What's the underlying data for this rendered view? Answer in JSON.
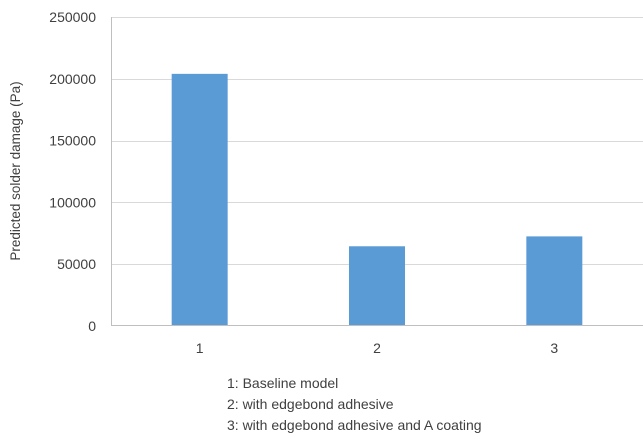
{
  "chart_data": {
    "type": "bar",
    "categories": [
      "1",
      "2",
      "3"
    ],
    "values": [
      204000,
      64500,
      72500
    ],
    "ylabel": "Predicted solder damage (Pa)",
    "xlabel": "",
    "ylim": [
      0,
      250000
    ],
    "y_ticks": [
      "0",
      "50000",
      "100000",
      "150000",
      "200000",
      "250000"
    ],
    "bar_color": "#5b9bd5",
    "gridline_color": "#d9d9d9",
    "grid": true,
    "legend": "none"
  },
  "notes": [
    "1: Baseline model",
    "2: with edgebond adhesive",
    "3: with edgebond adhesive and A coating"
  ]
}
